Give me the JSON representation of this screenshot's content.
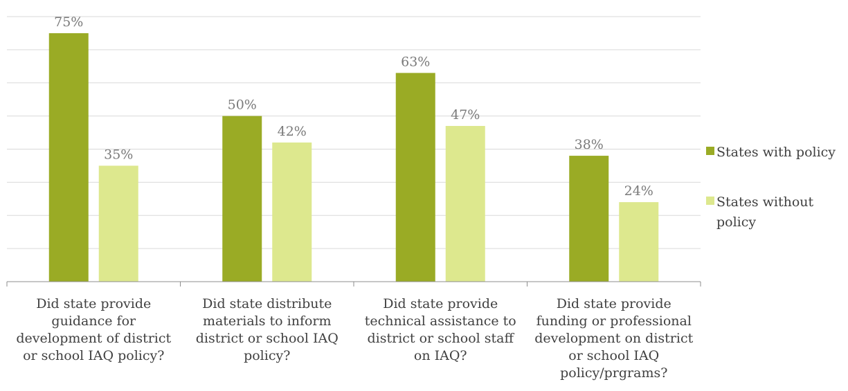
{
  "chart_data": {
    "type": "bar",
    "categories": [
      [
        "Did state provide",
        "guidance for",
        "development of district",
        "or school IAQ policy?"
      ],
      [
        "Did state distribute",
        "materials to inform",
        "district or school IAQ",
        "policy?"
      ],
      [
        "Did state provide",
        "technical assistance to",
        "district or school staff",
        "on IAQ?"
      ],
      [
        "Did state provide",
        "funding or professional",
        "development on district",
        "or school IAQ",
        "policy/prgrams?"
      ]
    ],
    "series": [
      {
        "name": "States with policy",
        "values": [
          75,
          50,
          63,
          38
        ],
        "labels": [
          "75%",
          "50%",
          "63%",
          "38%"
        ],
        "color": "#9aab25"
      },
      {
        "name": "States without policy",
        "values": [
          35,
          42,
          47,
          24
        ],
        "labels": [
          "35%",
          "42%",
          "47%",
          "24%"
        ],
        "color": "#dde88e"
      }
    ],
    "ylim": [
      0,
      80
    ],
    "grid": true,
    "legend": {
      "position": "right",
      "entries": [
        [
          "States with policy"
        ],
        [
          "States without",
          "policy"
        ]
      ]
    }
  }
}
